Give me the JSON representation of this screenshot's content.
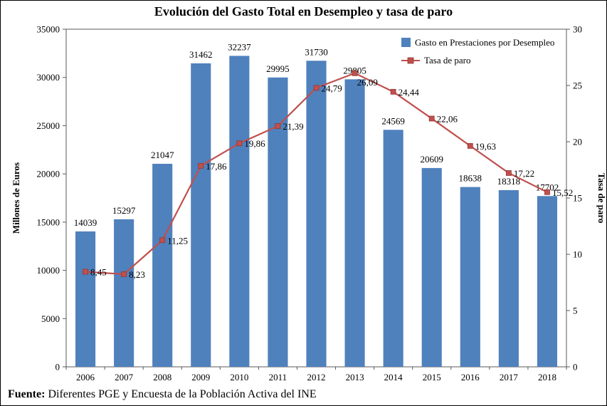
{
  "title": "Evolución del Gasto Total en Desempleo y tasa de paro",
  "footer": {
    "label": "Fuente:",
    "text": "Diferentes PGE y Encuesta de la Población Activa del INE"
  },
  "chart_data": {
    "type": "bar+line",
    "categories": [
      "2006",
      "2007",
      "2008",
      "2009",
      "2010",
      "2011",
      "2012",
      "2013",
      "2014",
      "2015",
      "2016",
      "2017",
      "2018"
    ],
    "series": [
      {
        "name": "Gasto en Prestaciones por Desempleo",
        "type": "bar",
        "axis": "left",
        "color": "#4F81BD",
        "values": [
          14039,
          15297,
          21047,
          31462,
          32237,
          29995,
          31730,
          29805,
          24569,
          20609,
          18638,
          18318,
          17702
        ],
        "labels": [
          "14039",
          "15297",
          "21047",
          "31462",
          "32237",
          "29995",
          "31730",
          "29805",
          "24569",
          "20609",
          "18638",
          "18318",
          "17702"
        ]
      },
      {
        "name": "Tasa de paro",
        "type": "line",
        "axis": "right",
        "color": "#C0504D",
        "marker_stroke": "#943634",
        "values": [
          8.45,
          8.23,
          11.25,
          17.86,
          19.86,
          21.39,
          24.79,
          26.09,
          24.44,
          22.06,
          19.63,
          17.22,
          15.52
        ],
        "labels": [
          "8,45",
          "8,23",
          "11,25",
          "17,86",
          "19,86",
          "21,39",
          "24,79",
          "26,09",
          "24,44",
          "22,06",
          "19,63",
          "17,22",
          "15,52"
        ]
      }
    ],
    "left_axis": {
      "label": "Millones de Euros",
      "min": 0,
      "max": 35000,
      "step": 5000
    },
    "right_axis": {
      "label": "Tasa de paro",
      "min": 0,
      "max": 30,
      "step": 5
    },
    "legend_position": "top-right",
    "grid": false
  }
}
